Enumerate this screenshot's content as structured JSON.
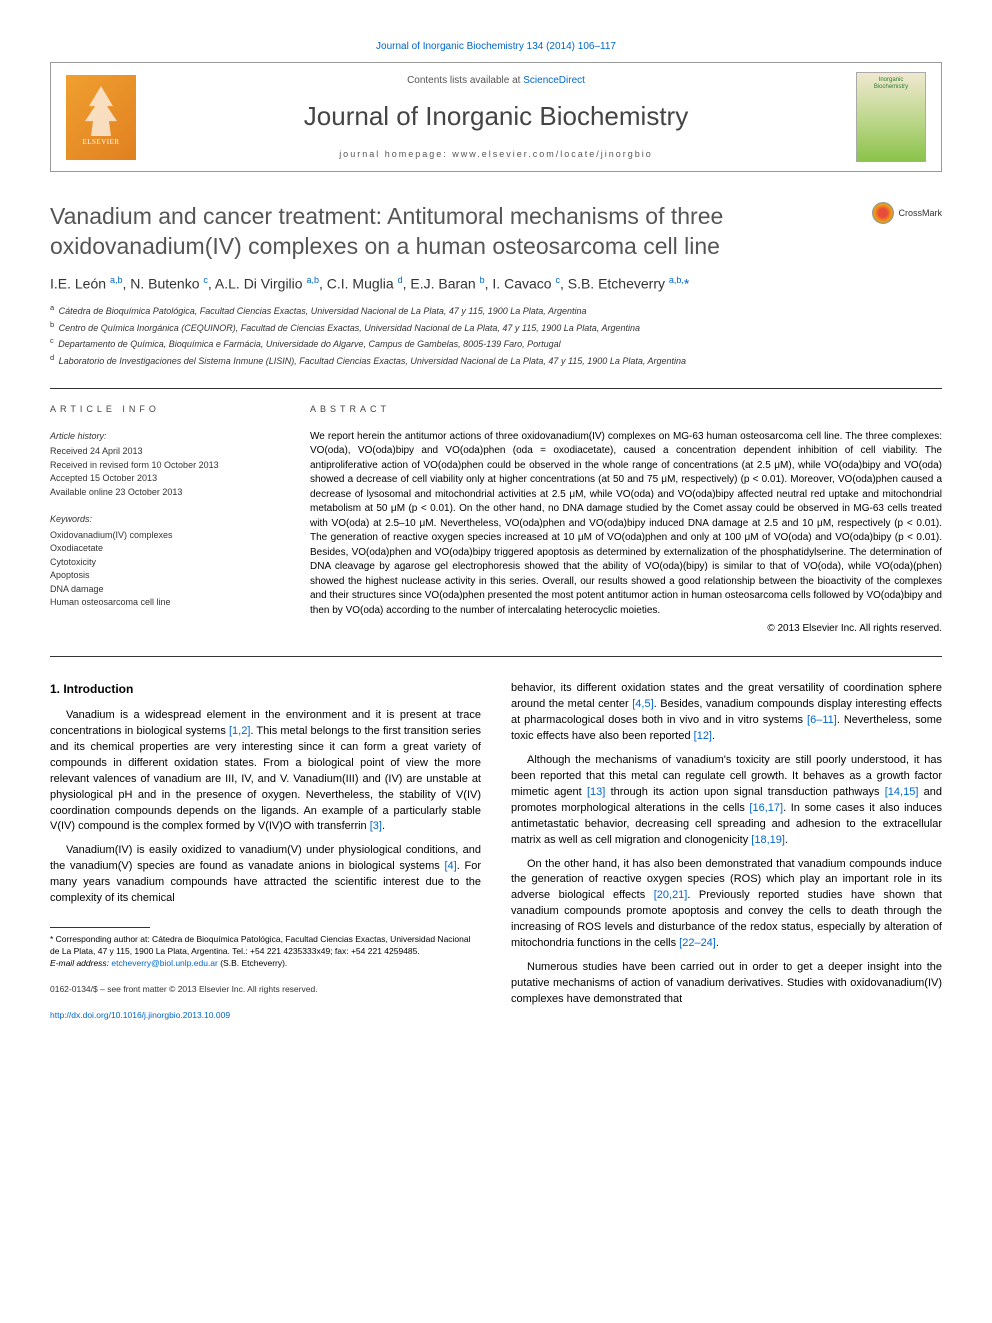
{
  "colors": {
    "link": "#0066cc",
    "text": "#000000",
    "heading_gray": "#555555",
    "border": "#333333",
    "publisher_orange": "#e08020"
  },
  "top_citation": "Journal of Inorganic Biochemistry 134 (2014) 106–117",
  "header": {
    "contents_prefix": "Contents lists available at ",
    "contents_link": "ScienceDirect",
    "journal_name": "Journal of Inorganic Biochemistry",
    "homepage_prefix": "journal homepage: ",
    "homepage_url": "www.elsevier.com/locate/jinorgbio",
    "publisher": "ELSEVIER",
    "cover_line1": "Inorganic",
    "cover_line2": "Biochemistry"
  },
  "title": "Vanadium and cancer treatment: Antitumoral mechanisms of three oxidovanadium(IV) complexes on a human osteosarcoma cell line",
  "crossmark": "CrossMark",
  "authors_html": "I.E. León <sup>a,b</sup>, N. Butenko <sup>c</sup>, A.L. Di Virgilio <sup>a,b</sup>, C.I. Muglia <sup>d</sup>, E.J. Baran <sup>b</sup>, I. Cavaco <sup>c</sup>, S.B. Etcheverry <sup>a,b,</sup><span class='corr-star'>*</span>",
  "affiliations": [
    {
      "sup": "a",
      "text": "Cátedra de Bioquímica Patológica, Facultad Ciencias Exactas, Universidad Nacional de La Plata, 47 y 115, 1900 La Plata, Argentina"
    },
    {
      "sup": "b",
      "text": "Centro de Química Inorgánica (CEQUINOR), Facultad de Ciencias Exactas, Universidad Nacional de La Plata, 47 y 115, 1900 La Plata, Argentina"
    },
    {
      "sup": "c",
      "text": "Departamento de Química, Bioquímica e Farmácia, Universidade do Algarve, Campus de Gambelas, 8005-139 Faro, Portugal"
    },
    {
      "sup": "d",
      "text": "Laboratorio de Investigaciones del Sistema Inmune (LISIN), Facultad Ciencias Exactas, Universidad Nacional de La Plata, 47 y 115, 1900 La Plata, Argentina"
    }
  ],
  "article_info": {
    "heading": "ARTICLE INFO",
    "history_label": "Article history:",
    "history": [
      "Received 24 April 2013",
      "Received in revised form 10 October 2013",
      "Accepted 15 October 2013",
      "Available online 23 October 2013"
    ],
    "keywords_label": "Keywords:",
    "keywords": [
      "Oxidovanadium(IV) complexes",
      "Oxodiacetate",
      "Cytotoxicity",
      "Apoptosis",
      "DNA damage",
      "Human osteosarcoma cell line"
    ]
  },
  "abstract": {
    "heading": "ABSTRACT",
    "text": "We report herein the antitumor actions of three oxidovanadium(IV) complexes on MG-63 human osteosarcoma cell line. The three complexes: VO(oda), VO(oda)bipy and VO(oda)phen (oda = oxodiacetate), caused a concentration dependent inhibition of cell viability. The antiproliferative action of VO(oda)phen could be observed in the whole range of concentrations (at 2.5 μM), while VO(oda)bipy and VO(oda) showed a decrease of cell viability only at higher concentrations (at 50 and 75 μM, respectively) (p < 0.01). Moreover, VO(oda)phen caused a decrease of lysosomal and mitochondrial activities at 2.5 μM, while VO(oda) and VO(oda)bipy affected neutral red uptake and mitochondrial metabolism at 50 μM (p < 0.01). On the other hand, no DNA damage studied by the Comet assay could be observed in MG-63 cells treated with VO(oda) at 2.5–10 μM. Nevertheless, VO(oda)phen and VO(oda)bipy induced DNA damage at 2.5 and 10 μM, respectively (p < 0.01). The generation of reactive oxygen species increased at 10 μM of VO(oda)phen and only at 100 μM of VO(oda) and VO(oda)bipy (p < 0.01). Besides, VO(oda)phen and VO(oda)bipy triggered apoptosis as determined by externalization of the phosphatidylserine. The determination of DNA cleavage by agarose gel electrophoresis showed that the ability of VO(oda)(bipy) is similar to that of VO(oda), while VO(oda)(phen) showed the highest nuclease activity in this series. Overall, our results showed a good relationship between the bioactivity of the complexes and their structures since VO(oda)phen presented the most potent antitumor action in human osteosarcoma cells followed by VO(oda)bipy and then by VO(oda) according to the number of intercalating heterocyclic moieties.",
    "copyright": "© 2013 Elsevier Inc. All rights reserved."
  },
  "intro_heading": "1. Introduction",
  "left_paras": [
    "Vanadium is a widespread element in the environment and it is present at trace concentrations in biological systems <span class='ref-link'>[1,2]</span>. This metal belongs to the first transition series and its chemical properties are very interesting since it can form a great variety of compounds in different oxidation states. From a biological point of view the more relevant valences of vanadium are III, IV, and V. Vanadium(III) and (IV) are unstable at physiological pH and in the presence of oxygen. Nevertheless, the stability of V(IV) coordination compounds depends on the ligands. An example of a particularly stable V(IV) compound is the complex formed by V(IV)O with transferrin <span class='ref-link'>[3]</span>.",
    "Vanadium(IV) is easily oxidized to vanadium(V) under physiological conditions, and the vanadium(V) species are found as vanadate anions in biological systems <span class='ref-link'>[4]</span>. For many years vanadium compounds have attracted the scientific interest due to the complexity of its chemical"
  ],
  "right_paras": [
    "behavior, its different oxidation states and the great versatility of coordination sphere around the metal center <span class='ref-link'>[4,5]</span>. Besides, vanadium compounds display interesting effects at pharmacological doses both in vivo and in vitro systems <span class='ref-link'>[6–11]</span>. Nevertheless, some toxic effects have also been reported <span class='ref-link'>[12]</span>.",
    "Although the mechanisms of vanadium's toxicity are still poorly understood, it has been reported that this metal can regulate cell growth. It behaves as a growth factor mimetic agent <span class='ref-link'>[13]</span> through its action upon signal transduction pathways <span class='ref-link'>[14,15]</span> and promotes morphological alterations in the cells <span class='ref-link'>[16,17]</span>. In some cases it also induces antimetastatic behavior, decreasing cell spreading and adhesion to the extracellular matrix as well as cell migration and clonogenicity <span class='ref-link'>[18,19]</span>.",
    "On the other hand, it has also been demonstrated that vanadium compounds induce the generation of reactive oxygen species (ROS) which play an important role in its adverse biological effects <span class='ref-link'>[20,21]</span>. Previously reported studies have shown that vanadium compounds promote apoptosis and convey the cells to death through the increasing of ROS levels and disturbance of the redox status, especially by alteration of mitochondria functions in the cells <span class='ref-link'>[22–24]</span>.",
    "Numerous studies have been carried out in order to get a deeper insight into the putative mechanisms of action of vanadium derivatives. Studies with oxidovanadium(IV) complexes have demonstrated that"
  ],
  "footnote": {
    "corr_text": "* Corresponding author at: Cátedra de Bioquímica Patológica, Facultad Ciencias Exactas, Universidad Nacional de La Plata, 47 y 115, 1900 La Plata, Argentina. Tel.: +54 221 4235333x49; fax: +54 221 4259485.",
    "email_label": "E-mail address: ",
    "email": "etcheverry@biol.unlp.edu.ar",
    "email_suffix": " (S.B. Etcheverry)."
  },
  "footer": {
    "issn_line": "0162-0134/$ – see front matter © 2013 Elsevier Inc. All rights reserved.",
    "doi": "http://dx.doi.org/10.1016/j.jinorgbio.2013.10.009"
  }
}
